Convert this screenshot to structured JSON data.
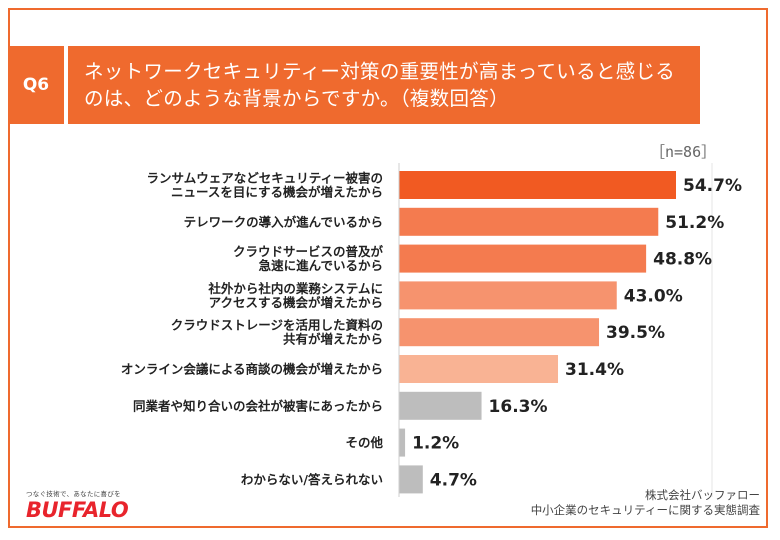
{
  "header": {
    "badge": "Q6",
    "title_line1": "ネットワークセキュリティー対策の重要性が高まっていると感じる",
    "title_line2": "のは、どのような背景からですか。（複数回答）"
  },
  "sample_size": "［n=86］",
  "chart_data": {
    "type": "bar",
    "orientation": "horizontal",
    "title": "ネットワークセキュリティー対策の重要性が高まっていると感じるのは、どのような背景からですか。（複数回答）",
    "unit": "%",
    "xlim": [
      0,
      100
    ],
    "categories": [
      [
        "ランサムウェアなどセキュリティー被害の",
        "ニュースを目にする機会が増えたから"
      ],
      [
        "テレワークの導入が進んでいるから"
      ],
      [
        "クラウドサービスの普及が",
        "急速に進んでいるから"
      ],
      [
        "社外から社内の業務システムに",
        "アクセスする機会が増えたから"
      ],
      [
        "クラウドストレージを活用した資料の",
        "共有が増えたから"
      ],
      [
        "オンライン会議による商談の機会が増えたから"
      ],
      [
        "同業者や知り合いの会社が被害にあったから"
      ],
      [
        "その他"
      ],
      [
        "わからない/答えられない"
      ]
    ],
    "values": [
      54.7,
      51.2,
      48.8,
      43.0,
      39.5,
      31.4,
      16.3,
      1.2,
      4.7
    ],
    "value_labels": [
      "54.7%",
      "51.2%",
      "48.8%",
      "43.0%",
      "39.5%",
      "31.4%",
      "16.3%",
      "1.2%",
      "4.7%"
    ],
    "colors": [
      "#f15a22",
      "#f47b4f",
      "#f47b4f",
      "#f6936e",
      "#f6936e",
      "#f9b394",
      "#bdbdbd",
      "#bdbdbd",
      "#bdbdbd"
    ]
  },
  "footer": {
    "logo_tagline": "つなぐ技術で、あなたに喜びを",
    "logo_brand": "BUFFALO",
    "source_line1": "株式会社バッファロー",
    "source_line2": "中小企業のセキュリティーに関する実態調査"
  }
}
